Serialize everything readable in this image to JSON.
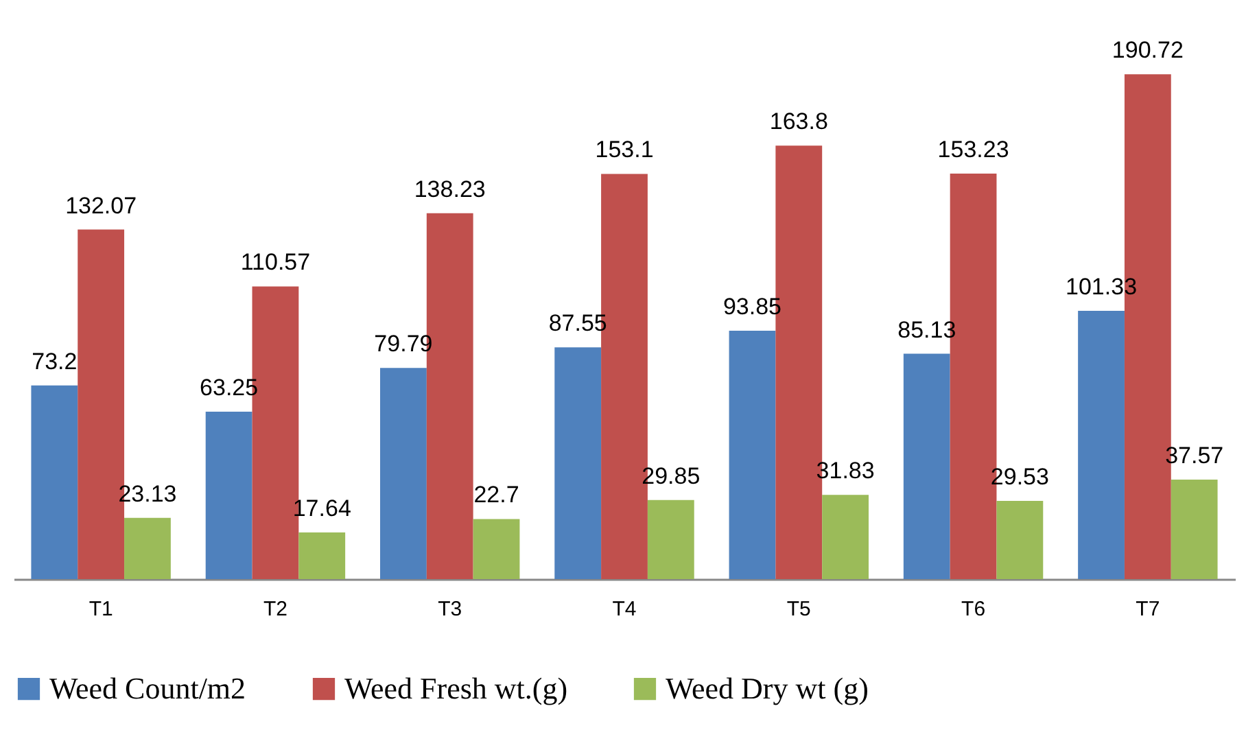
{
  "chart_data": {
    "type": "bar",
    "categories": [
      "T1",
      "T2",
      "T3",
      "T4",
      "T5",
      "T6",
      "T7"
    ],
    "series": [
      {
        "name": "Weed Count/m2",
        "color": "#4f81bd",
        "values": [
          73.2,
          63.25,
          79.79,
          87.55,
          93.85,
          85.13,
          101.33
        ]
      },
      {
        "name": "Weed Fresh wt.(g)",
        "color": "#c0504d",
        "values": [
          132.07,
          110.57,
          138.23,
          153.1,
          163.8,
          153.23,
          190.72
        ]
      },
      {
        "name": "Weed Dry wt (g)",
        "color": "#9bbb59",
        "values": [
          23.13,
          17.64,
          22.7,
          29.85,
          31.83,
          29.53,
          37.57
        ]
      }
    ],
    "data_labels": true,
    "legend": "bottom",
    "grid": false
  }
}
